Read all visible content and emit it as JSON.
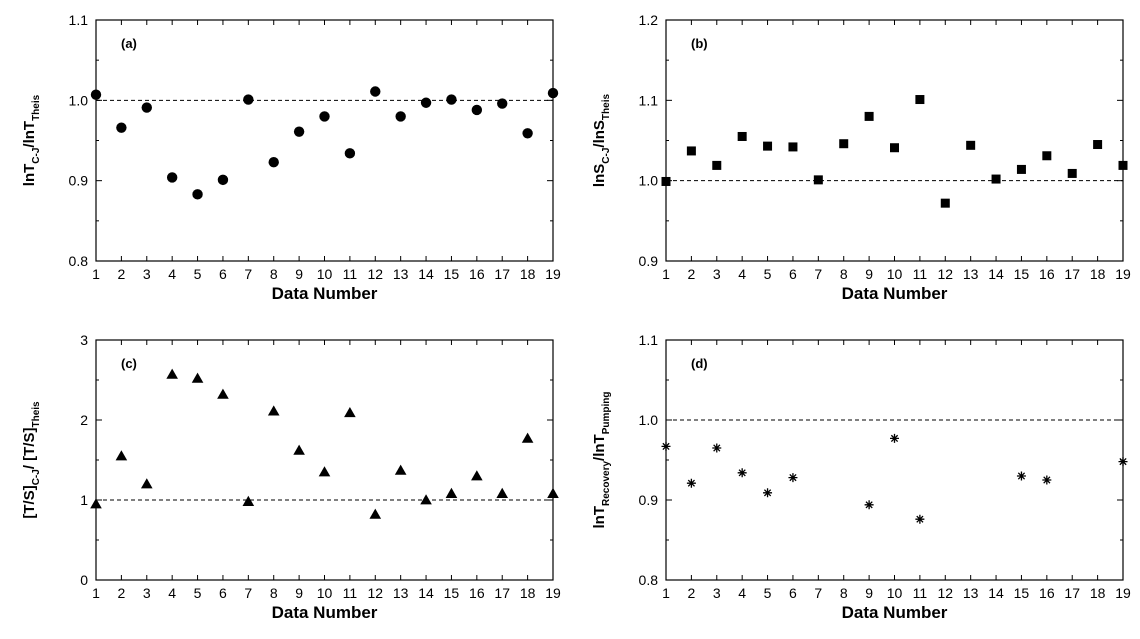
{
  "chart_data": [
    {
      "id": "a",
      "type": "scatter",
      "panel_label": "(a)",
      "marker": "circle",
      "xlabel": "Data Number",
      "ylabel": {
        "parts": [
          {
            "t": "lnT",
            "sub": false
          },
          {
            "t": "C-J",
            "sub": true
          },
          {
            "t": "/lnT",
            "sub": false
          },
          {
            "t": "Theis",
            "sub": true
          }
        ]
      },
      "xlim": [
        1,
        19
      ],
      "ylim": [
        0.8,
        1.1
      ],
      "yticks": [
        "0.8",
        "0.9",
        "1.0",
        "1.1"
      ],
      "xticks": [
        "1",
        "2",
        "3",
        "4",
        "5",
        "6",
        "7",
        "8",
        "9",
        "10",
        "11",
        "12",
        "13",
        "14",
        "15",
        "16",
        "17",
        "18",
        "19"
      ],
      "reference_line": 1.0,
      "x": [
        1,
        2,
        3,
        4,
        5,
        6,
        7,
        8,
        9,
        10,
        11,
        12,
        13,
        14,
        15,
        16,
        17,
        18,
        19
      ],
      "y": [
        1.007,
        0.966,
        0.991,
        0.904,
        0.883,
        0.901,
        1.001,
        0.923,
        0.961,
        0.98,
        0.934,
        1.011,
        0.98,
        0.997,
        1.001,
        0.988,
        0.996,
        0.959,
        1.009
      ]
    },
    {
      "id": "b",
      "type": "scatter",
      "panel_label": "(b)",
      "marker": "square",
      "xlabel": "Data Number",
      "ylabel": {
        "parts": [
          {
            "t": "lnS",
            "sub": false
          },
          {
            "t": "C-J",
            "sub": true
          },
          {
            "t": "/lnS",
            "sub": false
          },
          {
            "t": "Theis",
            "sub": true
          }
        ]
      },
      "xlim": [
        1,
        19
      ],
      "ylim": [
        0.9,
        1.2
      ],
      "yticks": [
        "0.9",
        "1.0",
        "1.1",
        "1.2"
      ],
      "xticks": [
        "1",
        "2",
        "3",
        "4",
        "5",
        "6",
        "7",
        "8",
        "9",
        "10",
        "11",
        "12",
        "13",
        "14",
        "15",
        "16",
        "17",
        "18",
        "19"
      ],
      "reference_line": 1.0,
      "x": [
        1,
        2,
        3,
        4,
        5,
        6,
        7,
        8,
        9,
        10,
        11,
        12,
        13,
        14,
        15,
        16,
        17,
        18,
        19
      ],
      "y": [
        0.999,
        1.037,
        1.019,
        1.055,
        1.043,
        1.042,
        1.001,
        1.046,
        1.08,
        1.041,
        1.101,
        0.972,
        1.044,
        1.002,
        1.014,
        1.031,
        1.009,
        1.045,
        1.019
      ]
    },
    {
      "id": "c",
      "type": "scatter",
      "panel_label": "(c)",
      "marker": "triangle",
      "xlabel": "Data Number",
      "ylabel": {
        "parts": [
          {
            "t": "[T/S]",
            "sub": false
          },
          {
            "t": "C-J",
            "sub": true
          },
          {
            "t": "/ [T/S]",
            "sub": false
          },
          {
            "t": "Theis",
            "sub": true
          }
        ]
      },
      "xlim": [
        1,
        19
      ],
      "ylim": [
        0,
        3
      ],
      "yticks": [
        "0",
        "1",
        "2",
        "3"
      ],
      "xticks": [
        "1",
        "2",
        "3",
        "4",
        "5",
        "6",
        "7",
        "8",
        "9",
        "10",
        "11",
        "12",
        "13",
        "14",
        "15",
        "16",
        "17",
        "18",
        "19"
      ],
      "reference_line": 1.0,
      "x": [
        1,
        2,
        3,
        4,
        5,
        6,
        7,
        8,
        9,
        10,
        11,
        12,
        13,
        14,
        15,
        16,
        17,
        18,
        19
      ],
      "y": [
        0.95,
        1.55,
        1.2,
        2.57,
        2.52,
        2.32,
        0.98,
        2.11,
        1.62,
        1.35,
        2.09,
        0.82,
        1.37,
        1.0,
        1.08,
        1.3,
        1.08,
        1.77,
        1.08
      ]
    },
    {
      "id": "d",
      "type": "scatter",
      "panel_label": "(d)",
      "marker": "asterisk",
      "xlabel": "Data Number",
      "ylabel": {
        "parts": [
          {
            "t": "lnT",
            "sub": false
          },
          {
            "t": "Recovery",
            "sub": true
          },
          {
            "t": "/lnT",
            "sub": false
          },
          {
            "t": "Pumping",
            "sub": true
          }
        ]
      },
      "xlim": [
        1,
        19
      ],
      "ylim": [
        0.8,
        1.1
      ],
      "yticks": [
        "0.8",
        "0.9",
        "1.0",
        "1.1"
      ],
      "xticks": [
        "1",
        "2",
        "3",
        "4",
        "5",
        "6",
        "7",
        "8",
        "9",
        "10",
        "11",
        "12",
        "13",
        "14",
        "15",
        "16",
        "17",
        "18",
        "19"
      ],
      "reference_line": 1.0,
      "x": [
        1,
        2,
        3,
        4,
        5,
        6,
        9,
        10,
        11,
        15,
        16,
        19
      ],
      "y": [
        0.967,
        0.921,
        0.965,
        0.934,
        0.909,
        0.928,
        0.894,
        0.977,
        0.876,
        0.93,
        0.925,
        0.948
      ]
    }
  ]
}
